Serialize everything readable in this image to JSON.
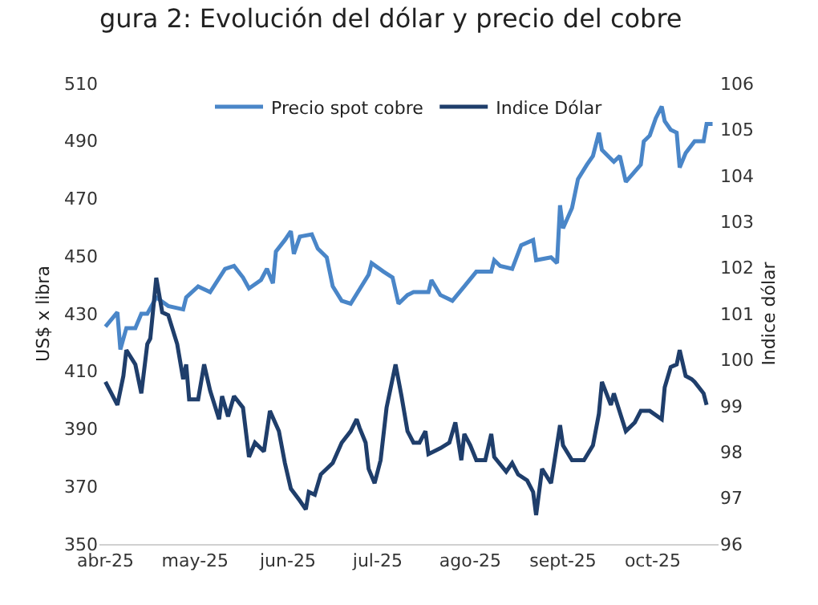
{
  "chart_data": {
    "type": "line",
    "title": "gura 2: Evolución del dólar y precio del cobre",
    "ylabel": "US$ x libra",
    "y2label": "Indice dólar",
    "xlim": [
      "2025-03-30",
      "2025-10-23"
    ],
    "xticks": [
      {
        "value": "2025-04-01",
        "label": "abr-25"
      },
      {
        "value": "2025-05-01",
        "label": "may-25"
      },
      {
        "value": "2025-06-01",
        "label": "jun-25"
      },
      {
        "value": "2025-07-01",
        "label": "jul-25"
      },
      {
        "value": "2025-08-01",
        "label": "ago-25"
      },
      {
        "value": "2025-09-01",
        "label": "sept-25"
      },
      {
        "value": "2025-10-01",
        "label": "oct-25"
      }
    ],
    "ylim": [
      350,
      510
    ],
    "yticks": [
      350,
      370,
      390,
      410,
      430,
      450,
      470,
      490,
      510
    ],
    "y2lim": [
      96,
      106
    ],
    "y2ticks": [
      96,
      97,
      98,
      99,
      100,
      101,
      102,
      103,
      104,
      105,
      106
    ],
    "grid": false,
    "legend": "top",
    "marker": "none",
    "line_style": "solid",
    "series": [
      {
        "name": "Precio spot cobre",
        "color": "#4a86c8",
        "x": [
          "2025-04-01",
          "2025-04-05",
          "2025-04-06",
          "2025-04-08",
          "2025-04-11",
          "2025-04-13",
          "2025-04-15",
          "2025-04-18",
          "2025-04-22",
          "2025-04-27",
          "2025-04-28",
          "2025-05-02",
          "2025-05-06",
          "2025-05-11",
          "2025-05-14",
          "2025-05-17",
          "2025-05-19",
          "2025-05-23",
          "2025-05-25",
          "2025-05-27",
          "2025-05-28",
          "2025-05-31",
          "2025-06-02",
          "2025-06-03",
          "2025-06-05",
          "2025-06-09",
          "2025-06-11",
          "2025-06-14",
          "2025-06-16",
          "2025-06-19",
          "2025-06-22",
          "2025-06-28",
          "2025-06-29",
          "2025-07-03",
          "2025-07-06",
          "2025-07-08",
          "2025-07-11",
          "2025-07-13",
          "2025-07-18",
          "2025-07-19",
          "2025-07-22",
          "2025-07-26",
          "2025-07-30",
          "2025-08-03",
          "2025-08-08",
          "2025-08-09",
          "2025-08-11",
          "2025-08-15",
          "2025-08-18",
          "2025-08-22",
          "2025-08-23",
          "2025-08-28",
          "2025-08-30",
          "2025-08-31",
          "2025-09-01",
          "2025-09-04",
          "2025-09-06",
          "2025-09-09",
          "2025-09-11",
          "2025-09-13",
          "2025-09-14",
          "2025-09-18",
          "2025-09-20",
          "2025-09-22",
          "2025-09-27",
          "2025-09-28",
          "2025-09-30",
          "2025-10-02",
          "2025-10-04",
          "2025-10-05",
          "2025-10-07",
          "2025-10-09",
          "2025-10-10",
          "2025-10-12",
          "2025-10-15",
          "2025-10-18",
          "2025-10-19",
          "2025-10-21"
        ],
        "values": [
          425.5,
          430.5,
          417.6,
          425,
          425,
          430,
          430,
          435.7,
          432.7,
          431.5,
          435.7,
          439.5,
          437.5,
          445.6,
          446.6,
          442.6,
          438.8,
          441.7,
          445.6,
          440.6,
          451.6,
          455.6,
          458.7,
          450.8,
          456.8,
          457.6,
          452.6,
          449.6,
          439.5,
          434.5,
          433.5,
          443.6,
          447.6,
          444.6,
          442.6,
          433.5,
          436.5,
          437.5,
          437.5,
          441.7,
          436.5,
          434.5,
          439.5,
          444.6,
          444.6,
          448.6,
          446.6,
          445.6,
          453.8,
          455.6,
          448.6,
          449.6,
          447.6,
          467.7,
          459.7,
          466.7,
          476.8,
          481.8,
          484.8,
          492.9,
          486.9,
          482.8,
          484.8,
          475.8,
          481.8,
          489.9,
          491.9,
          497.9,
          502,
          496.9,
          493.9,
          492.9,
          480.8,
          485.8,
          489.9,
          489.9,
          495.9,
          495.9
        ]
      },
      {
        "name": "Indice Dólar",
        "color": "#1f3e6b",
        "axis": "y2",
        "x": [
          "2025-04-01",
          "2025-04-05",
          "2025-04-07",
          "2025-04-08",
          "2025-04-11",
          "2025-04-13",
          "2025-04-15",
          "2025-04-16",
          "2025-04-18",
          "2025-04-20",
          "2025-04-22",
          "2025-04-25",
          "2025-04-27",
          "2025-04-28",
          "2025-04-29",
          "2025-05-02",
          "2025-05-04",
          "2025-05-06",
          "2025-05-09",
          "2025-05-10",
          "2025-05-12",
          "2025-05-14",
          "2025-05-17",
          "2025-05-19",
          "2025-05-21",
          "2025-05-24",
          "2025-05-26",
          "2025-05-29",
          "2025-05-31",
          "2025-06-02",
          "2025-06-05",
          "2025-06-07",
          "2025-06-08",
          "2025-06-10",
          "2025-06-12",
          "2025-06-16",
          "2025-06-19",
          "2025-06-22",
          "2025-06-24",
          "2025-06-25",
          "2025-06-27",
          "2025-06-28",
          "2025-06-30",
          "2025-07-02",
          "2025-07-04",
          "2025-07-07",
          "2025-07-09",
          "2025-07-11",
          "2025-07-13",
          "2025-07-15",
          "2025-07-17",
          "2025-07-18",
          "2025-07-22",
          "2025-07-25",
          "2025-07-27",
          "2025-07-29",
          "2025-07-30",
          "2025-08-01",
          "2025-08-03",
          "2025-08-06",
          "2025-08-08",
          "2025-08-09",
          "2025-08-13",
          "2025-08-15",
          "2025-08-17",
          "2025-08-20",
          "2025-08-22",
          "2025-08-23",
          "2025-08-25",
          "2025-08-28",
          "2025-08-31",
          "2025-09-01",
          "2025-09-04",
          "2025-09-08",
          "2025-09-11",
          "2025-09-13",
          "2025-09-14",
          "2025-09-17",
          "2025-09-18",
          "2025-09-22",
          "2025-09-25",
          "2025-09-27",
          "2025-09-30",
          "2025-10-04",
          "2025-10-05",
          "2025-10-07",
          "2025-10-09",
          "2025-10-10",
          "2025-10-12",
          "2025-10-14",
          "2025-10-15",
          "2025-10-18",
          "2025-10-19"
        ],
        "values": [
          99.52,
          99.02,
          99.65,
          100.21,
          99.9,
          99.27,
          100.34,
          100.46,
          101.78,
          101.03,
          100.97,
          100.34,
          99.58,
          99.9,
          99.14,
          99.14,
          99.9,
          99.33,
          98.71,
          99.21,
          98.77,
          99.21,
          98.96,
          97.89,
          98.2,
          98.01,
          98.89,
          98.45,
          97.76,
          97.2,
          96.94,
          96.75,
          97.13,
          97.07,
          97.51,
          97.76,
          98.2,
          98.45,
          98.71,
          98.52,
          98.2,
          97.63,
          97.32,
          97.82,
          98.96,
          99.9,
          99.21,
          98.45,
          98.2,
          98.2,
          98.45,
          97.95,
          98.08,
          98.2,
          98.64,
          97.82,
          98.39,
          98.14,
          97.82,
          97.82,
          98.39,
          97.89,
          97.57,
          97.76,
          97.51,
          97.38,
          97.13,
          96.63,
          97.63,
          97.32,
          98.58,
          98.14,
          97.82,
          97.82,
          98.14,
          98.83,
          99.52,
          99.02,
          99.27,
          98.45,
          98.64,
          98.89,
          98.89,
          98.71,
          99.4,
          99.84,
          99.9,
          100.21,
          99.65,
          99.58,
          99.52,
          99.27,
          99.02
        ]
      }
    ]
  }
}
